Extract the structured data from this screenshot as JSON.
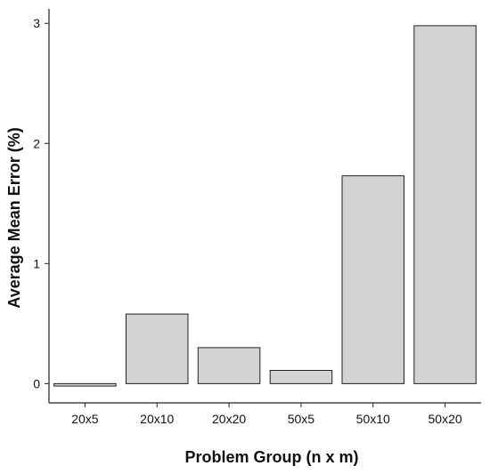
{
  "chart_data": {
    "type": "bar",
    "title": "",
    "xlabel": "Problem Group (n x m)",
    "ylabel": "Average Mean Error (%)",
    "categories": [
      "20x5",
      "20x10",
      "20x20",
      "50x5",
      "50x10",
      "50x20"
    ],
    "values": [
      -0.02,
      0.58,
      0.3,
      0.11,
      1.73,
      2.98
    ],
    "yticks": [
      0,
      1,
      2,
      3
    ],
    "ylim": [
      -0.16,
      3.12
    ],
    "grid": false,
    "legend": "none",
    "colors": {
      "bar_fill": "#d3d3d3",
      "bar_stroke": "#222222",
      "axis": "#222222"
    }
  }
}
